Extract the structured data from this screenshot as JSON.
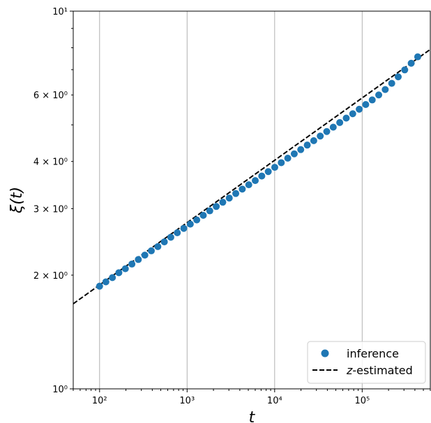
{
  "chart_data": {
    "type": "scatter",
    "xlabel": "t",
    "ylabel": "ξ(t)",
    "xscale": "log",
    "yscale": "log",
    "xlim": [
      50,
      600000
    ],
    "ylim": [
      1,
      10
    ],
    "x_ticks": [
      {
        "value": 100,
        "label": "10²"
      },
      {
        "value": 1000,
        "label": "10³"
      },
      {
        "value": 10000,
        "label": "10⁴"
      },
      {
        "value": 100000,
        "label": "10⁵"
      }
    ],
    "y_ticks": [
      {
        "value": 1,
        "label": "10⁰"
      },
      {
        "value": 2,
        "label": "2 × 10⁰"
      },
      {
        "value": 3,
        "label": "3 × 10⁰"
      },
      {
        "value": 4,
        "label": "4 × 10⁰"
      },
      {
        "value": 6,
        "label": "6 × 10⁰"
      },
      {
        "value": 10,
        "label": "10¹"
      }
    ],
    "grid": "vertical at major x ticks",
    "legend_position": "bottom-right",
    "series": [
      {
        "name": "inference",
        "kind": "scatter",
        "color": "#1f77b4",
        "x": [
          100,
          118,
          140,
          166,
          197,
          234,
          277,
          329,
          390,
          463,
          549,
          651,
          772,
          916,
          1087,
          1289,
          1530,
          1815,
          2154,
          2555,
          3031,
          3596,
          4266,
          5061,
          6005,
          7124,
          8452,
          10027,
          11897,
          14114,
          16745,
          19866,
          23569,
          27963,
          33175,
          39359,
          46696,
          55400,
          65727,
          77979,
          92515,
          109760,
          130220,
          154494,
          183293,
          217460,
          257996,
          306089,
          363145,
          430838
        ],
        "y": [
          1.87,
          1.92,
          1.97,
          2.03,
          2.08,
          2.14,
          2.2,
          2.26,
          2.32,
          2.38,
          2.45,
          2.52,
          2.59,
          2.66,
          2.73,
          2.8,
          2.88,
          2.96,
          3.04,
          3.12,
          3.2,
          3.29,
          3.38,
          3.47,
          3.56,
          3.66,
          3.76,
          3.86,
          3.97,
          4.08,
          4.19,
          4.3,
          4.42,
          4.54,
          4.67,
          4.8,
          4.93,
          5.07,
          5.21,
          5.35,
          5.5,
          5.66,
          5.82,
          6.0,
          6.2,
          6.44,
          6.7,
          6.99,
          7.28,
          7.57
        ]
      },
      {
        "name": "z-estimated",
        "name_prefix": "z",
        "name_suffix": "-estimated",
        "kind": "line",
        "style": "dashed",
        "color": "#000000",
        "x": [
          50,
          600000
        ],
        "y": [
          1.68,
          7.92
        ]
      }
    ]
  }
}
